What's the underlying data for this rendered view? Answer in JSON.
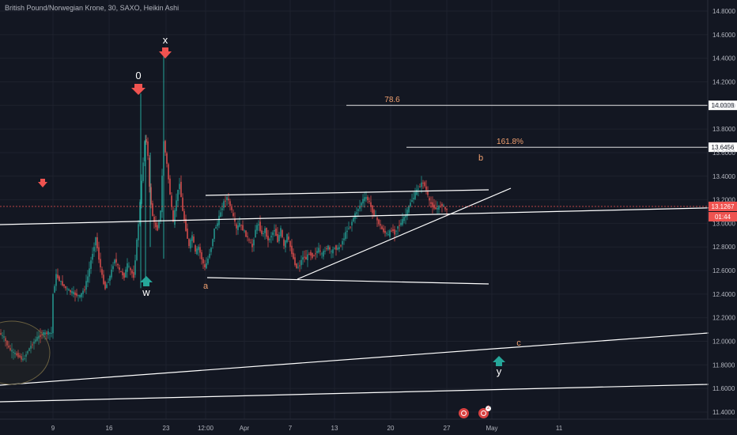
{
  "title": "British Pound/Norwegian Krone, 30, SAXO, Heikin Ashi",
  "colors": {
    "background": "#131722",
    "grid": "#1e222d",
    "up": "#26a69a",
    "down": "#ef5350",
    "wave_white": "#ffffff",
    "fib_orange": "#f0a070",
    "price_line": "#ef5350"
  },
  "chart_data": {
    "type": "candlestick",
    "y_axis": {
      "ylim": [
        11.35,
        14.9
      ],
      "ticks": [
        "11.4000",
        "11.6000",
        "11.8000",
        "12.0000",
        "12.2000",
        "12.4000",
        "12.6000",
        "12.8000",
        "13.0000",
        "13.2000",
        "13.4000",
        "13.6000",
        "13.8000",
        "14.0000",
        "14.2000",
        "14.4000",
        "14.6000",
        "14.8000"
      ]
    },
    "x_axis": {
      "ticks": [
        "9",
        "16",
        "23",
        "12:00",
        "Apr",
        "7",
        "13",
        "20",
        "27",
        "May",
        "11"
      ]
    },
    "price_path": [
      [
        0,
        12.07
      ],
      [
        6,
        12.03
      ],
      [
        12,
        11.94
      ],
      [
        18,
        11.9
      ],
      [
        24,
        11.88
      ],
      [
        30,
        11.84
      ],
      [
        36,
        11.92
      ],
      [
        42,
        11.98
      ],
      [
        48,
        12.03
      ],
      [
        54,
        12.06
      ],
      [
        60,
        12.07
      ],
      [
        66,
        12.07
      ],
      [
        68,
        12.4
      ],
      [
        72,
        12.56
      ],
      [
        78,
        12.5
      ],
      [
        84,
        12.45
      ],
      [
        90,
        12.42
      ],
      [
        96,
        12.4
      ],
      [
        102,
        12.38
      ],
      [
        108,
        12.45
      ],
      [
        112,
        12.55
      ],
      [
        118,
        12.75
      ],
      [
        122,
        12.88
      ],
      [
        126,
        12.7
      ],
      [
        130,
        12.55
      ],
      [
        134,
        12.45
      ],
      [
        140,
        12.55
      ],
      [
        146,
        12.7
      ],
      [
        152,
        12.6
      ],
      [
        158,
        12.55
      ],
      [
        162,
        12.65
      ],
      [
        166,
        12.6
      ],
      [
        170,
        12.55
      ],
      [
        176,
        13.0
      ],
      [
        180,
        13.35
      ],
      [
        184,
        13.7
      ],
      [
        187,
        13.7
      ],
      [
        190,
        13.3
      ],
      [
        193,
        13.1
      ],
      [
        196,
        13.0
      ],
      [
        200,
        12.95
      ],
      [
        204,
        13.1
      ],
      [
        206,
        13.4
      ],
      [
        208,
        13.7
      ],
      [
        212,
        13.5
      ],
      [
        216,
        13.25
      ],
      [
        220,
        13.0
      ],
      [
        224,
        13.2
      ],
      [
        228,
        13.35
      ],
      [
        232,
        13.1
      ],
      [
        236,
        12.95
      ],
      [
        240,
        12.8
      ],
      [
        244,
        12.9
      ],
      [
        248,
        12.75
      ],
      [
        252,
        12.8
      ],
      [
        256,
        12.7
      ],
      [
        260,
        12.62
      ],
      [
        264,
        12.7
      ],
      [
        268,
        12.8
      ],
      [
        272,
        12.95
      ],
      [
        276,
        13.0
      ],
      [
        280,
        13.1
      ],
      [
        284,
        13.18
      ],
      [
        288,
        13.22
      ],
      [
        292,
        13.15
      ],
      [
        296,
        13.05
      ],
      [
        300,
        12.95
      ],
      [
        304,
        13.0
      ],
      [
        308,
        12.95
      ],
      [
        312,
        12.9
      ],
      [
        316,
        12.85
      ],
      [
        320,
        12.8
      ],
      [
        324,
        12.95
      ],
      [
        328,
        13.0
      ],
      [
        332,
        12.9
      ],
      [
        336,
        12.95
      ],
      [
        340,
        12.85
      ],
      [
        344,
        12.9
      ],
      [
        348,
        12.95
      ],
      [
        352,
        12.85
      ],
      [
        356,
        12.95
      ],
      [
        360,
        12.8
      ],
      [
        364,
        12.9
      ],
      [
        368,
        12.8
      ],
      [
        372,
        12.7
      ],
      [
        376,
        12.62
      ],
      [
        380,
        12.65
      ],
      [
        384,
        12.72
      ],
      [
        388,
        12.7
      ],
      [
        392,
        12.75
      ],
      [
        396,
        12.72
      ],
      [
        400,
        12.75
      ],
      [
        404,
        12.78
      ],
      [
        408,
        12.73
      ],
      [
        412,
        12.78
      ],
      [
        416,
        12.8
      ],
      [
        420,
        12.75
      ],
      [
        424,
        12.8
      ],
      [
        428,
        12.78
      ],
      [
        432,
        12.82
      ],
      [
        436,
        12.88
      ],
      [
        440,
        12.95
      ],
      [
        444,
        12.98
      ],
      [
        448,
        13.05
      ],
      [
        452,
        13.1
      ],
      [
        456,
        13.15
      ],
      [
        460,
        13.2
      ],
      [
        464,
        13.22
      ],
      [
        468,
        13.18
      ],
      [
        472,
        13.1
      ],
      [
        476,
        13.05
      ],
      [
        480,
        13.0
      ],
      [
        484,
        12.95
      ],
      [
        488,
        12.92
      ],
      [
        492,
        12.9
      ],
      [
        496,
        12.95
      ],
      [
        500,
        12.92
      ],
      [
        504,
        12.98
      ],
      [
        508,
        13.0
      ],
      [
        512,
        13.05
      ],
      [
        516,
        13.1
      ],
      [
        520,
        13.18
      ],
      [
        524,
        13.22
      ],
      [
        528,
        13.28
      ],
      [
        532,
        13.32
      ],
      [
        536,
        13.35
      ],
      [
        540,
        13.28
      ],
      [
        544,
        13.18
      ],
      [
        548,
        13.15
      ],
      [
        552,
        13.12
      ],
      [
        556,
        13.14
      ],
      [
        560,
        13.16
      ],
      [
        564,
        13.12
      ]
    ],
    "current_price": "13.1267",
    "countdown": "01:44",
    "levels": [
      {
        "label": "78.6",
        "price": "14.0008",
        "value": 14.0008
      },
      {
        "label": "161.8%",
        "price": "13.6456",
        "value": 13.6456
      }
    ],
    "wave_labels": [
      "0",
      "x",
      "w",
      "a",
      "b",
      "c",
      "y"
    ]
  },
  "icons": [
    "arrow-down-icon",
    "arrow-up-icon",
    "replay-icon",
    "notification-icon"
  ],
  "notification_count": "2"
}
